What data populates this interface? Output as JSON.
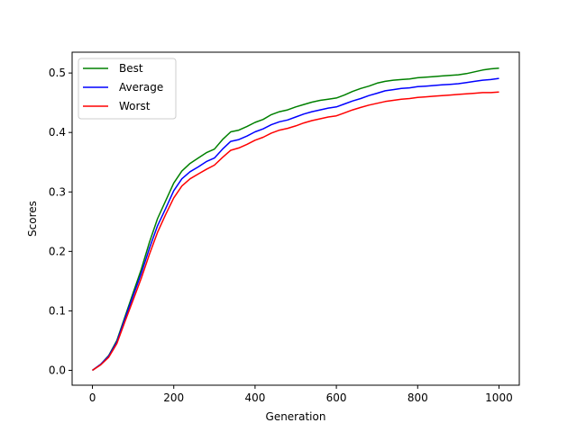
{
  "chart_data": {
    "type": "line",
    "xlabel": "Generation",
    "ylabel": "Scores",
    "xlim": [
      -50,
      1050
    ],
    "ylim": [
      -0.025,
      0.535
    ],
    "xticks": [
      0,
      200,
      400,
      600,
      800,
      1000
    ],
    "yticks": [
      0.0,
      0.1,
      0.2,
      0.3,
      0.4,
      0.5
    ],
    "xtick_labels": [
      "0",
      "200",
      "400",
      "600",
      "800",
      "1000"
    ],
    "ytick_labels": [
      "0.0",
      "0.1",
      "0.2",
      "0.3",
      "0.4",
      "0.5"
    ],
    "legend_position": "top-left",
    "grid": false,
    "series": [
      {
        "name": "Best",
        "color": "#008000",
        "x": [
          0,
          20,
          40,
          60,
          80,
          100,
          120,
          140,
          160,
          180,
          200,
          220,
          240,
          260,
          280,
          300,
          320,
          340,
          360,
          380,
          400,
          420,
          440,
          460,
          480,
          500,
          520,
          540,
          560,
          580,
          600,
          620,
          640,
          660,
          680,
          700,
          720,
          740,
          760,
          780,
          800,
          820,
          840,
          860,
          880,
          900,
          920,
          940,
          960,
          980,
          1000
        ],
        "values": [
          0.0,
          0.01,
          0.025,
          0.05,
          0.09,
          0.13,
          0.17,
          0.215,
          0.255,
          0.285,
          0.315,
          0.335,
          0.348,
          0.357,
          0.366,
          0.372,
          0.388,
          0.401,
          0.404,
          0.41,
          0.417,
          0.422,
          0.43,
          0.435,
          0.438,
          0.443,
          0.447,
          0.451,
          0.454,
          0.456,
          0.458,
          0.463,
          0.469,
          0.474,
          0.478,
          0.483,
          0.486,
          0.488,
          0.489,
          0.49,
          0.492,
          0.493,
          0.494,
          0.495,
          0.496,
          0.497,
          0.499,
          0.502,
          0.505,
          0.507,
          0.508
        ]
      },
      {
        "name": "Average",
        "color": "#0000ff",
        "x": [
          0,
          20,
          40,
          60,
          80,
          100,
          120,
          140,
          160,
          180,
          200,
          220,
          240,
          260,
          280,
          300,
          320,
          340,
          360,
          380,
          400,
          420,
          440,
          460,
          480,
          500,
          520,
          540,
          560,
          580,
          600,
          620,
          640,
          660,
          680,
          700,
          720,
          740,
          760,
          780,
          800,
          820,
          840,
          860,
          880,
          900,
          920,
          940,
          960,
          980,
          1000
        ],
        "values": [
          0.0,
          0.01,
          0.024,
          0.048,
          0.087,
          0.125,
          0.163,
          0.205,
          0.243,
          0.272,
          0.302,
          0.322,
          0.334,
          0.342,
          0.351,
          0.357,
          0.372,
          0.385,
          0.388,
          0.394,
          0.401,
          0.406,
          0.413,
          0.418,
          0.421,
          0.426,
          0.431,
          0.435,
          0.438,
          0.441,
          0.443,
          0.448,
          0.453,
          0.457,
          0.462,
          0.466,
          0.47,
          0.472,
          0.474,
          0.475,
          0.477,
          0.478,
          0.479,
          0.48,
          0.481,
          0.482,
          0.484,
          0.486,
          0.488,
          0.489,
          0.491
        ]
      },
      {
        "name": "Worst",
        "color": "#ff0000",
        "x": [
          0,
          20,
          40,
          60,
          80,
          100,
          120,
          140,
          160,
          180,
          200,
          220,
          240,
          260,
          280,
          300,
          320,
          340,
          360,
          380,
          400,
          420,
          440,
          460,
          480,
          500,
          520,
          540,
          560,
          580,
          600,
          620,
          640,
          660,
          680,
          700,
          720,
          740,
          760,
          780,
          800,
          820,
          840,
          860,
          880,
          900,
          920,
          940,
          960,
          980,
          1000
        ],
        "values": [
          0.0,
          0.009,
          0.022,
          0.045,
          0.082,
          0.118,
          0.155,
          0.195,
          0.232,
          0.262,
          0.29,
          0.31,
          0.322,
          0.33,
          0.338,
          0.345,
          0.358,
          0.37,
          0.374,
          0.38,
          0.387,
          0.392,
          0.399,
          0.404,
          0.407,
          0.411,
          0.416,
          0.42,
          0.423,
          0.426,
          0.428,
          0.433,
          0.438,
          0.442,
          0.446,
          0.449,
          0.452,
          0.454,
          0.456,
          0.457,
          0.459,
          0.46,
          0.461,
          0.462,
          0.463,
          0.464,
          0.465,
          0.466,
          0.467,
          0.467,
          0.468
        ]
      }
    ]
  }
}
